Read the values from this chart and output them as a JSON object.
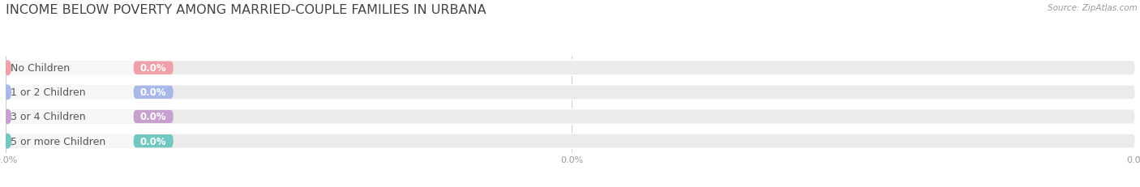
{
  "title": "INCOME BELOW POVERTY AMONG MARRIED-COUPLE FAMILIES IN URBANA",
  "source": "Source: ZipAtlas.com",
  "categories": [
    "No Children",
    "1 or 2 Children",
    "3 or 4 Children",
    "5 or more Children"
  ],
  "values": [
    0.0,
    0.0,
    0.0,
    0.0
  ],
  "bar_colors": [
    "#f0a0a8",
    "#a8b8e8",
    "#c8a0d0",
    "#70c8c0"
  ],
  "bar_bg_color": "#ebebeb",
  "pill_bg_color": "#f7f7f7",
  "title_color": "#444444",
  "value_label_color": "#ffffff",
  "category_label_color": "#555555",
  "source_color": "#999999",
  "background_color": "#ffffff",
  "bar_height": 0.62,
  "title_fontsize": 11.5,
  "label_fontsize": 9.0,
  "value_fontsize": 8.5,
  "tick_fontsize": 8.0,
  "source_fontsize": 7.5
}
